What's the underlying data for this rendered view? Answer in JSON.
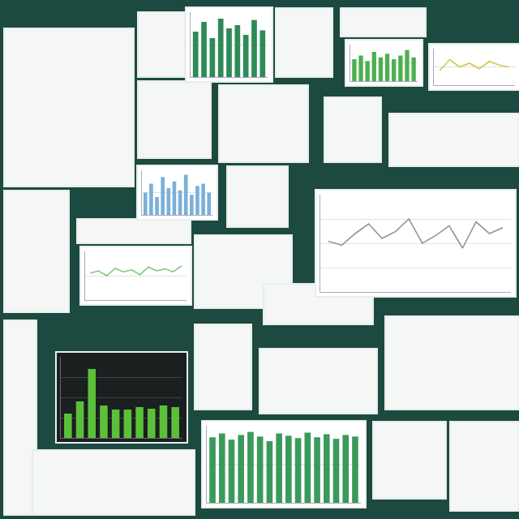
{
  "chart_data": [
    {
      "type": "line",
      "color": "#8a96a0",
      "categories": [
        null,
        null,
        null,
        null,
        null,
        null,
        null,
        null,
        null,
        null,
        null,
        null,
        null,
        null
      ],
      "values": [
        52,
        48,
        60,
        70,
        55,
        62,
        75,
        50,
        58,
        68,
        45,
        72,
        60,
        66
      ],
      "ylim": [
        0,
        100
      ],
      "yticks": [
        0,
        25,
        50,
        75,
        100
      ],
      "grid": true,
      "tick_labels": false
    },
    {
      "type": "bar",
      "color": "#5cbf3a",
      "categories": [
        null,
        null,
        null,
        null,
        null,
        null,
        null,
        null,
        null,
        null
      ],
      "values": [
        30,
        45,
        85,
        40,
        35,
        35,
        38,
        36,
        40,
        38
      ],
      "ylim": [
        0,
        100
      ],
      "yticks": [
        0,
        25,
        50,
        75,
        100
      ],
      "grid": true,
      "tick_labels": false
    },
    {
      "type": "bar",
      "color": "#3a9a5a",
      "categories": [
        null,
        null,
        null,
        null,
        null,
        null,
        null,
        null,
        null,
        null,
        null,
        null,
        null,
        null,
        null,
        null
      ],
      "values": [
        85,
        90,
        82,
        88,
        92,
        86,
        80,
        90,
        87,
        84,
        91,
        85,
        89,
        83,
        88,
        86
      ],
      "ylim": [
        0,
        100
      ],
      "yticks": [
        0,
        50,
        100
      ],
      "grid": true,
      "tick_labels": false
    },
    {
      "type": "line",
      "color": "#7fc97f",
      "categories": [
        null,
        null,
        null,
        null,
        null,
        null,
        null,
        null,
        null,
        null,
        null,
        null
      ],
      "values": [
        55,
        60,
        50,
        65,
        58,
        62,
        52,
        68,
        60,
        64,
        58,
        70
      ],
      "ylim": [
        0,
        100
      ],
      "yticks": [
        0,
        50,
        100
      ],
      "grid": true,
      "tick_labels": false
    },
    {
      "type": "bar",
      "color": "#4caf50",
      "categories": [
        null,
        null,
        null,
        null,
        null,
        null,
        null,
        null,
        null,
        null
      ],
      "values": [
        60,
        70,
        55,
        80,
        65,
        75,
        60,
        70,
        85,
        65
      ],
      "ylim": [
        0,
        100
      ],
      "yticks": [
        0,
        50,
        100
      ],
      "grid": true,
      "tick_labels": false
    },
    {
      "type": "line",
      "color": "#d4c84a",
      "categories": [
        null,
        null,
        null,
        null,
        null,
        null,
        null,
        null
      ],
      "values": [
        40,
        70,
        50,
        60,
        45,
        65,
        55,
        50
      ],
      "ylim": [
        0,
        100
      ],
      "yticks": [
        0,
        50,
        100
      ],
      "grid": true,
      "tick_labels": false
    },
    {
      "type": "bar",
      "color": "#7ab0d8",
      "categories": [
        null,
        null,
        null,
        null,
        null,
        null,
        null,
        null,
        null,
        null,
        null,
        null
      ],
      "values": [
        50,
        70,
        40,
        85,
        60,
        75,
        55,
        90,
        45,
        65,
        70,
        50
      ],
      "ylim": [
        0,
        100
      ],
      "yticks": [
        0,
        50,
        100
      ],
      "grid": true,
      "tick_labels": false
    },
    {
      "type": "bar",
      "color": "#2e8b57",
      "categories": [
        null,
        null,
        null,
        null,
        null,
        null,
        null,
        null,
        null
      ],
      "values": [
        70,
        85,
        60,
        90,
        75,
        80,
        65,
        88,
        72
      ],
      "ylim": [
        0,
        100
      ],
      "yticks": [
        0,
        50,
        100
      ],
      "grid": true,
      "tick_labels": false
    }
  ]
}
